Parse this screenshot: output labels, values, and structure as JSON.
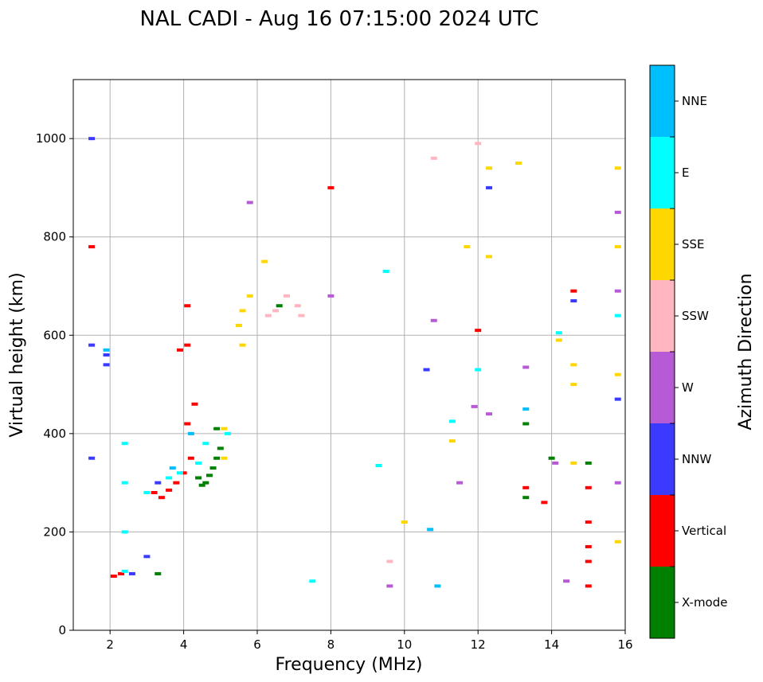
{
  "chart_data": {
    "type": "scatter",
    "title": "NAL CADI - Aug 16 07:15:00 2024 UTC",
    "xlabel": "Frequency (MHz)",
    "ylabel": "Virtual height (km)",
    "xlim": [
      1,
      16
    ],
    "ylim": [
      0,
      1120
    ],
    "xticks": [
      2,
      4,
      6,
      8,
      10,
      12,
      14,
      16
    ],
    "yticks": [
      0,
      200,
      400,
      600,
      800,
      1000
    ],
    "grid": true,
    "colorbar": {
      "label": "Azimuth Direction",
      "categories": [
        {
          "name": "X-mode",
          "color": "#008000"
        },
        {
          "name": "Vertical",
          "color": "#ff0000"
        },
        {
          "name": "NNW",
          "color": "#3b3bff"
        },
        {
          "name": "W",
          "color": "#b65ad6"
        },
        {
          "name": "SSW",
          "color": "#ffb6c1"
        },
        {
          "name": "SSE",
          "color": "#ffd700"
        },
        {
          "name": "E",
          "color": "#00ffff"
        },
        {
          "name": "NNE",
          "color": "#00bfff"
        }
      ]
    },
    "series": [
      {
        "name": "X-mode",
        "points": [
          [
            4.6,
            300
          ],
          [
            4.7,
            315
          ],
          [
            4.8,
            330
          ],
          [
            4.9,
            350
          ],
          [
            5.0,
            370
          ],
          [
            4.9,
            410
          ],
          [
            4.5,
            295
          ],
          [
            4.4,
            310
          ],
          [
            13.3,
            270
          ],
          [
            13.3,
            420
          ],
          [
            15.0,
            340
          ],
          [
            14.0,
            350
          ],
          [
            6.6,
            660
          ],
          [
            3.3,
            115
          ]
        ]
      },
      {
        "name": "Vertical",
        "points": [
          [
            3.2,
            280
          ],
          [
            3.4,
            270
          ],
          [
            3.6,
            285
          ],
          [
            3.8,
            300
          ],
          [
            4.0,
            320
          ],
          [
            4.2,
            350
          ],
          [
            4.1,
            420
          ],
          [
            4.3,
            460
          ],
          [
            4.1,
            580
          ],
          [
            4.1,
            660
          ],
          [
            3.9,
            570
          ],
          [
            2.1,
            110
          ],
          [
            2.3,
            115
          ],
          [
            1.5,
            780
          ],
          [
            15.0,
            290
          ],
          [
            15.0,
            220
          ],
          [
            15.0,
            170
          ],
          [
            15.0,
            140
          ],
          [
            15.0,
            90
          ],
          [
            14.6,
            690
          ],
          [
            13.3,
            290
          ],
          [
            13.8,
            260
          ],
          [
            8.0,
            900
          ],
          [
            12.0,
            610
          ]
        ]
      },
      {
        "name": "NNW",
        "points": [
          [
            1.9,
            560
          ],
          [
            1.9,
            540
          ],
          [
            1.5,
            580
          ],
          [
            1.5,
            1000
          ],
          [
            1.5,
            350
          ],
          [
            3.0,
            150
          ],
          [
            12.3,
            900
          ],
          [
            10.6,
            530
          ],
          [
            14.6,
            670
          ],
          [
            15.8,
            470
          ],
          [
            2.6,
            115
          ],
          [
            3.3,
            300
          ]
        ]
      },
      {
        "name": "W",
        "points": [
          [
            8.0,
            680
          ],
          [
            10.8,
            630
          ],
          [
            11.5,
            300
          ],
          [
            13.3,
            535
          ],
          [
            14.4,
            100
          ],
          [
            15.8,
            850
          ],
          [
            15.8,
            690
          ],
          [
            15.8,
            300
          ],
          [
            12.3,
            440
          ],
          [
            14.1,
            340
          ],
          [
            9.6,
            90
          ],
          [
            11.9,
            455
          ],
          [
            5.8,
            870
          ]
        ]
      },
      {
        "name": "SSW",
        "points": [
          [
            6.5,
            650
          ],
          [
            6.8,
            680
          ],
          [
            7.1,
            660
          ],
          [
            7.2,
            640
          ],
          [
            6.3,
            640
          ],
          [
            12.0,
            990
          ],
          [
            10.8,
            960
          ],
          [
            9.6,
            140
          ]
        ]
      },
      {
        "name": "SSE",
        "points": [
          [
            5.5,
            620
          ],
          [
            5.6,
            650
          ],
          [
            5.8,
            680
          ],
          [
            5.6,
            580
          ],
          [
            5.1,
            350
          ],
          [
            5.1,
            410
          ],
          [
            6.2,
            750
          ],
          [
            11.7,
            780
          ],
          [
            12.3,
            760
          ],
          [
            14.6,
            540
          ],
          [
            14.6,
            500
          ],
          [
            14.6,
            340
          ],
          [
            15.8,
            940
          ],
          [
            15.8,
            780
          ],
          [
            15.8,
            520
          ],
          [
            15.8,
            180
          ],
          [
            11.3,
            385
          ],
          [
            10.0,
            220
          ],
          [
            13.1,
            950
          ],
          [
            14.2,
            590
          ],
          [
            12.3,
            940
          ]
        ]
      },
      {
        "name": "E",
        "points": [
          [
            2.4,
            300
          ],
          [
            2.4,
            200
          ],
          [
            2.4,
            120
          ],
          [
            2.4,
            380
          ],
          [
            3.6,
            310
          ],
          [
            3.9,
            320
          ],
          [
            4.4,
            340
          ],
          [
            4.6,
            380
          ],
          [
            5.2,
            400
          ],
          [
            9.5,
            730
          ],
          [
            9.3,
            335
          ],
          [
            11.3,
            425
          ],
          [
            12.0,
            530
          ],
          [
            14.2,
            605
          ],
          [
            7.5,
            100
          ],
          [
            15.8,
            640
          ],
          [
            3.0,
            280
          ]
        ]
      },
      {
        "name": "NNE",
        "points": [
          [
            1.9,
            570
          ],
          [
            4.2,
            400
          ],
          [
            3.7,
            330
          ],
          [
            10.7,
            205
          ],
          [
            10.9,
            90
          ],
          [
            13.3,
            450
          ]
        ]
      }
    ]
  }
}
